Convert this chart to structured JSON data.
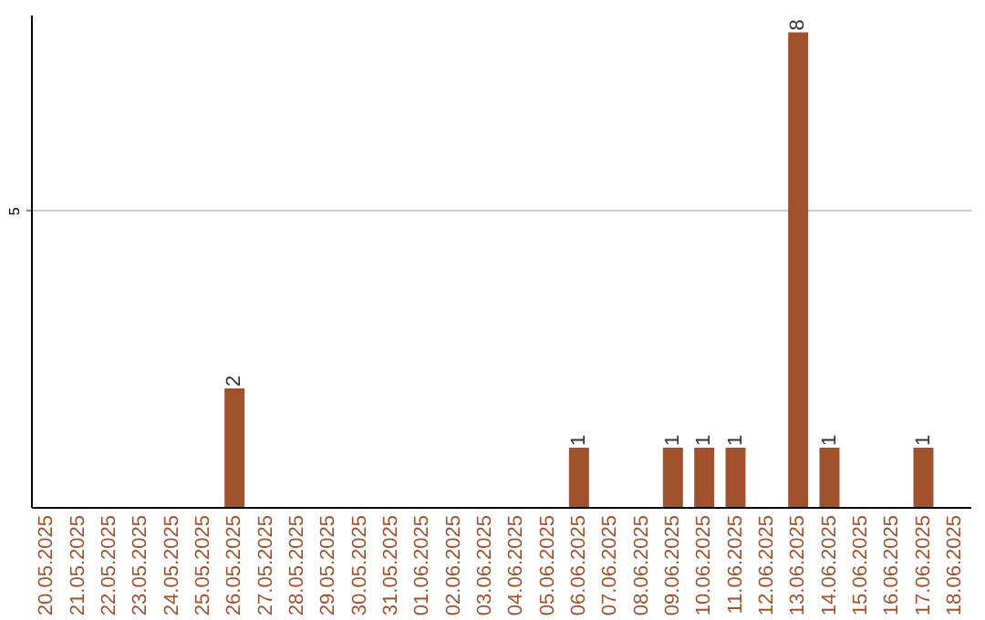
{
  "chart_data": {
    "type": "bar",
    "categories": [
      "20.05.2025",
      "21.05.2025",
      "22.05.2025",
      "23.05.2025",
      "24.05.2025",
      "25.05.2025",
      "26.05.2025",
      "27.05.2025",
      "28.05.2025",
      "29.05.2025",
      "30.05.2025",
      "31.05.2025",
      "01.06.2025",
      "02.06.2025",
      "03.06.2025",
      "04.06.2025",
      "05.06.2025",
      "06.06.2025",
      "07.06.2025",
      "08.06.2025",
      "09.06.2025",
      "10.06.2025",
      "11.06.2025",
      "12.06.2025",
      "13.06.2025",
      "14.06.2025",
      "15.06.2025",
      "16.06.2025",
      "17.06.2025",
      "18.06.2025"
    ],
    "values": [
      0,
      0,
      0,
      0,
      0,
      0,
      2,
      0,
      0,
      0,
      0,
      0,
      0,
      0,
      0,
      0,
      0,
      1,
      0,
      0,
      1,
      1,
      1,
      0,
      8,
      1,
      0,
      0,
      1,
      0
    ],
    "value_labels": [
      null,
      null,
      null,
      null,
      null,
      null,
      "2",
      null,
      null,
      null,
      null,
      null,
      null,
      null,
      null,
      null,
      null,
      "1",
      null,
      null,
      "1",
      "1",
      "1",
      null,
      "8",
      "1",
      null,
      null,
      "1",
      null
    ],
    "color": "#a0522d",
    "ylim": [
      0,
      8.3
    ],
    "yticks": [
      5
    ],
    "grid": "y"
  }
}
